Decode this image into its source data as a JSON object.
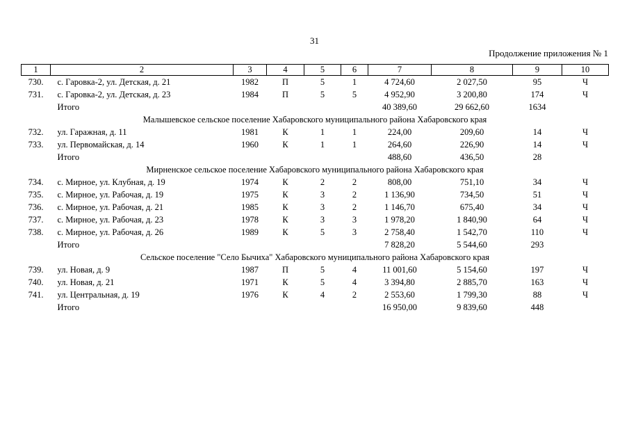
{
  "page": {
    "page_number": "31",
    "continuation_note": "Продолжение приложения № 1"
  },
  "table": {
    "column_numbers": [
      "1",
      "2",
      "3",
      "4",
      "5",
      "6",
      "7",
      "8",
      "9",
      "10"
    ],
    "rows": [
      {
        "type": "data",
        "num": "730.",
        "address": "с. Гаровка-2, ул. Детская, д. 21",
        "year": "1982",
        "material": "П",
        "floors": "5",
        "entrances": "1",
        "total_area": "4 724,60",
        "living_area": "2 027,50",
        "residents": "95",
        "mark": "Ч"
      },
      {
        "type": "data",
        "num": "731.",
        "address": "с. Гаровка-2, ул. Детская, д. 23",
        "year": "1984",
        "material": "П",
        "floors": "5",
        "entrances": "5",
        "total_area": "4 952,90",
        "living_area": "3 200,80",
        "residents": "174",
        "mark": "Ч"
      },
      {
        "type": "subtotal",
        "label": "Итого",
        "total_area": "40 389,60",
        "living_area": "29 662,60",
        "residents": "1634"
      },
      {
        "type": "section",
        "title": "Малышевское сельское поселение Хабаровского муниципального района Хабаровского края"
      },
      {
        "type": "data",
        "num": "732.",
        "address": "ул. Гаражная, д. 11",
        "year": "1981",
        "material": "К",
        "floors": "1",
        "entrances": "1",
        "total_area": "224,00",
        "living_area": "209,60",
        "residents": "14",
        "mark": "Ч"
      },
      {
        "type": "data",
        "num": "733.",
        "address": "ул. Первомайская, д. 14",
        "year": "1960",
        "material": "К",
        "floors": "1",
        "entrances": "1",
        "total_area": "264,60",
        "living_area": "226,90",
        "residents": "14",
        "mark": "Ч"
      },
      {
        "type": "subtotal",
        "label": "Итого",
        "total_area": "488,60",
        "living_area": "436,50",
        "residents": "28"
      },
      {
        "type": "section",
        "title": "Мирненское сельское поселение Хабаровского муниципального района Хабаровского края"
      },
      {
        "type": "data",
        "num": "734.",
        "address": "с. Мирное, ул. Клубная, д. 19",
        "year": "1974",
        "material": "К",
        "floors": "2",
        "entrances": "2",
        "total_area": "808,00",
        "living_area": "751,10",
        "residents": "34",
        "mark": "Ч"
      },
      {
        "type": "data",
        "num": "735.",
        "address": "с. Мирное, ул. Рабочая, д. 19",
        "year": "1975",
        "material": "К",
        "floors": "3",
        "entrances": "2",
        "total_area": "1 136,90",
        "living_area": "734,50",
        "residents": "51",
        "mark": "Ч"
      },
      {
        "type": "data",
        "num": "736.",
        "address": "с. Мирное, ул. Рабочая, д. 21",
        "year": "1985",
        "material": "К",
        "floors": "3",
        "entrances": "2",
        "total_area": "1 146,70",
        "living_area": "675,40",
        "residents": "34",
        "mark": "Ч"
      },
      {
        "type": "data",
        "num": "737.",
        "address": "с. Мирное, ул. Рабочая, д. 23",
        "year": "1978",
        "material": "К",
        "floors": "3",
        "entrances": "3",
        "total_area": "1 978,20",
        "living_area": "1 840,90",
        "residents": "64",
        "mark": "Ч"
      },
      {
        "type": "data",
        "num": "738.",
        "address": "с. Мирное, ул. Рабочая, д. 26",
        "year": "1989",
        "material": "К",
        "floors": "5",
        "entrances": "3",
        "total_area": "2 758,40",
        "living_area": "1 542,70",
        "residents": "110",
        "mark": "Ч"
      },
      {
        "type": "subtotal",
        "label": "Итого",
        "total_area": "7 828,20",
        "living_area": "5 544,60",
        "residents": "293"
      },
      {
        "type": "section",
        "title": "Сельское поселение \"Село Бычиха\" Хабаровского муниципального района Хабаровского края"
      },
      {
        "type": "data",
        "num": "739.",
        "address": "ул. Новая, д. 9",
        "year": "1987",
        "material": "П",
        "floors": "5",
        "entrances": "4",
        "total_area": "11 001,60",
        "living_area": "5 154,60",
        "residents": "197",
        "mark": "Ч"
      },
      {
        "type": "data",
        "num": "740.",
        "address": "ул. Новая, д. 21",
        "year": "1971",
        "material": "К",
        "floors": "5",
        "entrances": "4",
        "total_area": "3 394,80",
        "living_area": "2 885,70",
        "residents": "163",
        "mark": "Ч"
      },
      {
        "type": "data",
        "num": "741.",
        "address": "ул. Центральная, д. 19",
        "year": "1976",
        "material": "К",
        "floors": "4",
        "entrances": "2",
        "total_area": "2 553,60",
        "living_area": "1 799,30",
        "residents": "88",
        "mark": "Ч"
      },
      {
        "type": "subtotal",
        "label": "Итого",
        "total_area": "16 950,00",
        "living_area": "9 839,60",
        "residents": "448"
      }
    ]
  }
}
